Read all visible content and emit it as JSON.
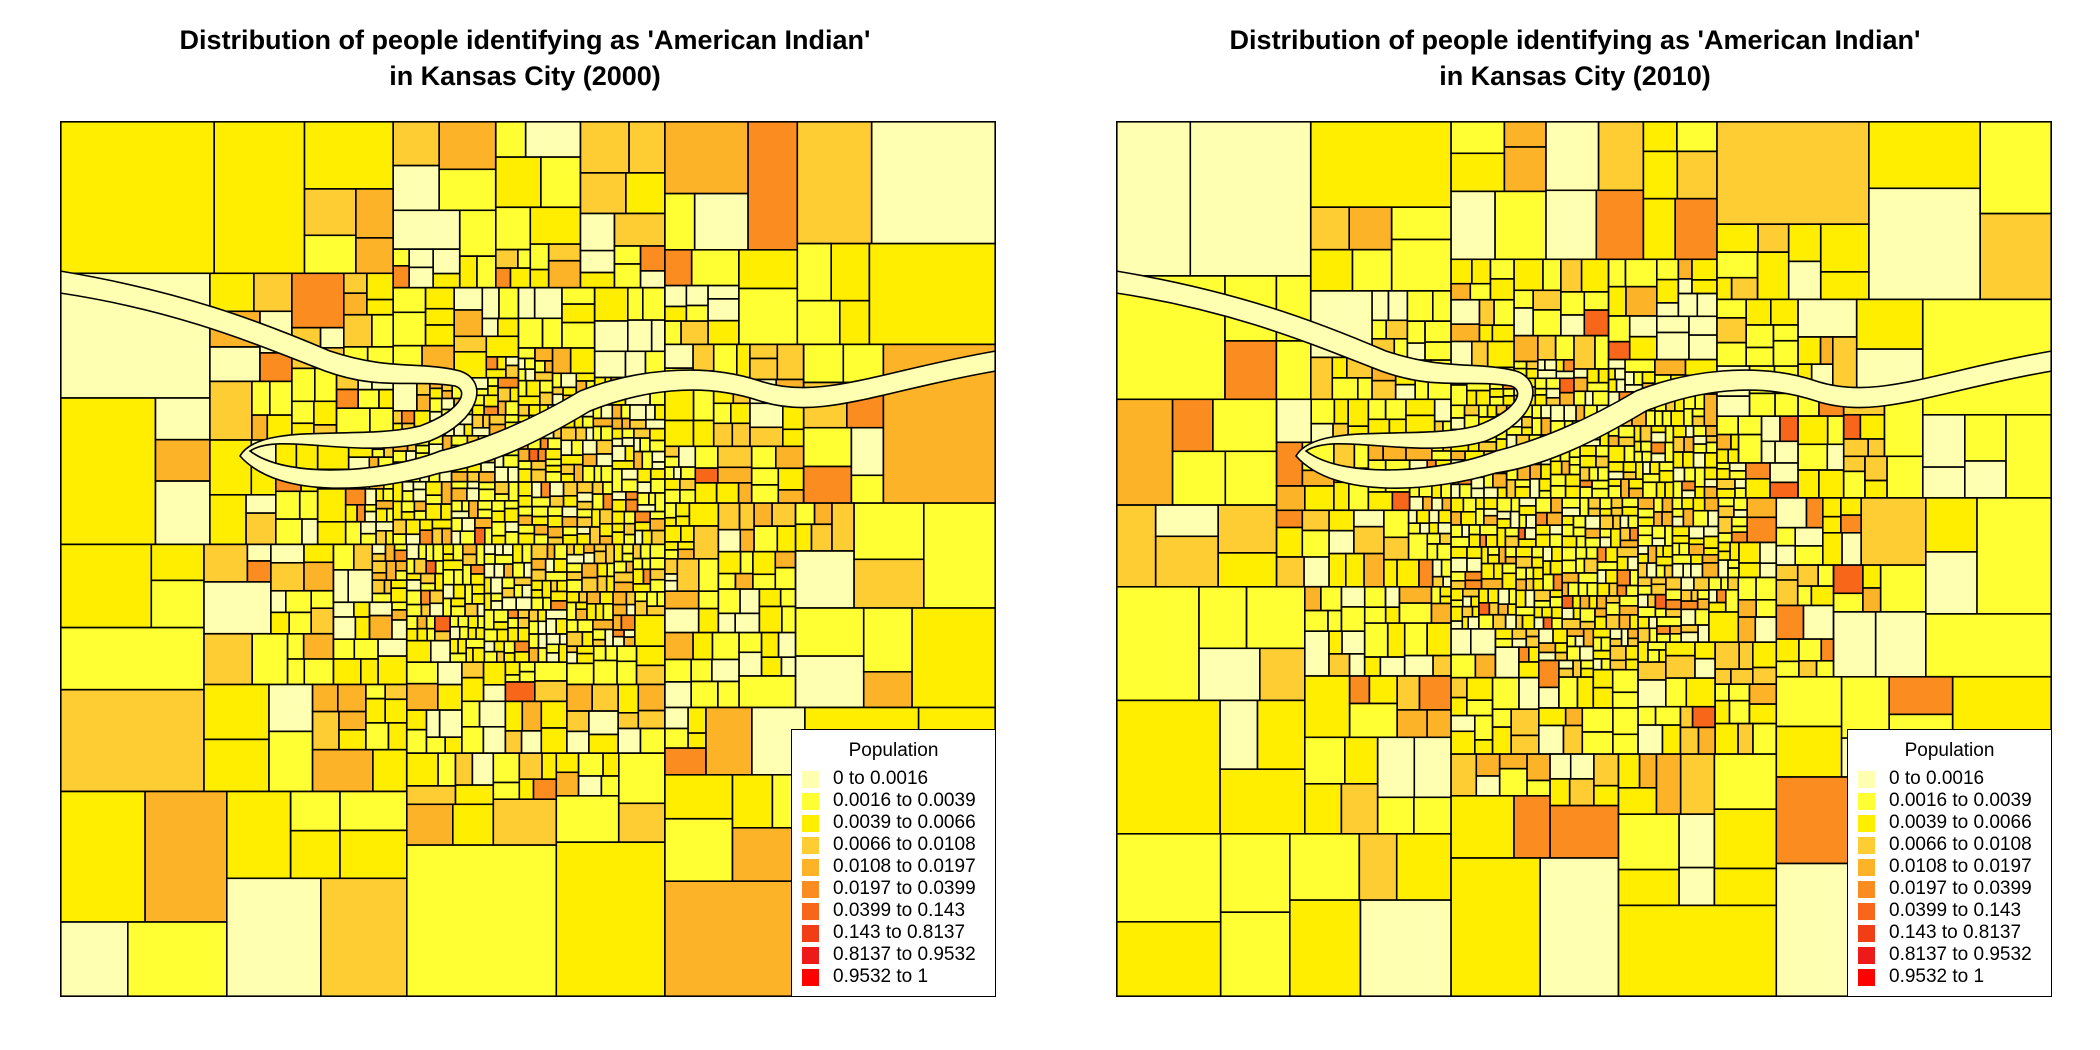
{
  "colors": [
    "#FFFFB2",
    "#FFFF33",
    "#FFEE00",
    "#FECC33",
    "#FDB328",
    "#FB8C1F",
    "#F8661A",
    "#F23E17",
    "#EE1A1A",
    "#FF0000"
  ],
  "maps": [
    {
      "title_line1": "Distribution of people identifying as 'American Indian'",
      "title_line2": "in Kansas City (2000)",
      "legend": {
        "title": "Population",
        "items": [
          "0 to 0.0016",
          "0.0016 to 0.0039",
          "0.0039 to 0.0066",
          "0.0066 to 0.0108",
          "0.0108 to 0.0197",
          "0.0197 to 0.0399",
          "0.0399 to 0.143",
          "0.143 to 0.8137",
          "0.8137 to 0.9532",
          "0.9532 to 1"
        ]
      }
    },
    {
      "title_line1": "Distribution of people identifying as 'American Indian'",
      "title_line2": "in Kansas City (2010)",
      "legend": {
        "title": "Population",
        "items": [
          "0 to 0.0016",
          "0.0016 to 0.0039",
          "0.0039 to 0.0066",
          "0.0066 to 0.0108",
          "0.0108 to 0.0197",
          "0.0197 to 0.0399",
          "0.0399 to 0.143",
          "0.143 to 0.8137",
          "0.8137 to 0.9532",
          "0.9532 to 1"
        ]
      }
    }
  ]
}
